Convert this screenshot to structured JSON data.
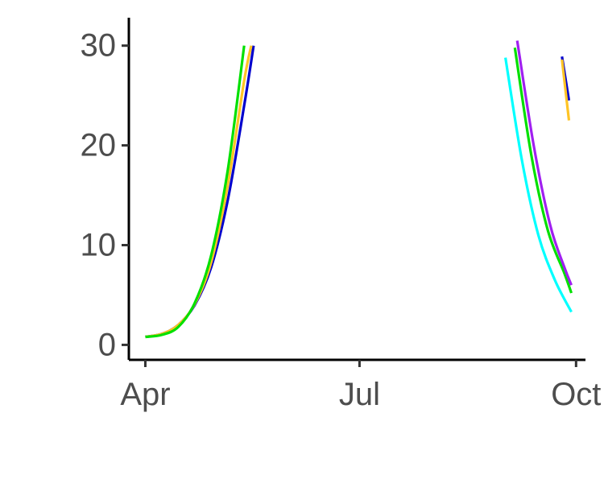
{
  "chart_data": {
    "type": "line",
    "title": "",
    "xlabel": "",
    "ylabel": "",
    "x_axis": {
      "type": "date",
      "range": [
        "2021-03-25",
        "2021-10-05"
      ],
      "ticks": [
        {
          "value": "2021-04-01",
          "label": "Apr"
        },
        {
          "value": "2021-07-01",
          "label": "Jul"
        },
        {
          "value": "2021-10-01",
          "label": "Oct"
        }
      ]
    },
    "y_axis": {
      "range": [
        -1.5,
        32.8
      ],
      "ticks": [
        {
          "value": 0,
          "label": "0"
        },
        {
          "value": 10,
          "label": "10"
        },
        {
          "value": 20,
          "label": "20"
        },
        {
          "value": 30,
          "label": "30"
        }
      ]
    },
    "grid": false,
    "legend": "none",
    "series": [
      {
        "color": "#0000cd",
        "points": [
          [
            "2021-04-01",
            0.8
          ],
          [
            "2021-04-08",
            1.1
          ],
          [
            "2021-04-15",
            2.0
          ],
          [
            "2021-04-22",
            4.0
          ],
          [
            "2021-04-29",
            7.8
          ],
          [
            "2021-05-06",
            14.5
          ],
          [
            "2021-05-13",
            24.0
          ],
          [
            "2021-05-17",
            30.0
          ]
        ]
      },
      {
        "color": "#ffc425",
        "points": [
          [
            "2021-04-01",
            0.8
          ],
          [
            "2021-04-08",
            1.1
          ],
          [
            "2021-04-15",
            2.0
          ],
          [
            "2021-04-22",
            4.1
          ],
          [
            "2021-04-29",
            8.3
          ],
          [
            "2021-05-06",
            16.0
          ],
          [
            "2021-05-13",
            26.5
          ],
          [
            "2021-05-16",
            30.0
          ]
        ]
      },
      {
        "color": "#00e000",
        "points": [
          [
            "2021-04-01",
            0.8
          ],
          [
            "2021-04-08",
            1.0
          ],
          [
            "2021-04-15",
            1.8
          ],
          [
            "2021-04-22",
            4.2
          ],
          [
            "2021-04-29",
            9.0
          ],
          [
            "2021-05-06",
            17.5
          ],
          [
            "2021-05-13",
            30.0
          ]
        ]
      },
      {
        "color": "#00ffff",
        "points": [
          [
            "2021-09-01",
            28.8
          ],
          [
            "2021-09-08",
            18.5
          ],
          [
            "2021-09-15",
            11.0
          ],
          [
            "2021-09-22",
            6.5
          ],
          [
            "2021-09-29",
            3.3
          ]
        ]
      },
      {
        "color": "#00e000",
        "points": [
          [
            "2021-09-05",
            29.8
          ],
          [
            "2021-09-12",
            19.0
          ],
          [
            "2021-09-19",
            11.5
          ],
          [
            "2021-09-26",
            7.2
          ],
          [
            "2021-09-29",
            5.2
          ]
        ]
      },
      {
        "color": "#a020f0",
        "points": [
          [
            "2021-09-06",
            30.5
          ],
          [
            "2021-09-13",
            20.0
          ],
          [
            "2021-09-20",
            12.0
          ],
          [
            "2021-09-26",
            7.8
          ],
          [
            "2021-09-29",
            6.0
          ]
        ]
      },
      {
        "color": "#0000cd",
        "points": [
          [
            "2021-09-25",
            28.9
          ],
          [
            "2021-09-28",
            24.5
          ]
        ]
      },
      {
        "color": "#ffc425",
        "points": [
          [
            "2021-09-25",
            28.6
          ],
          [
            "2021-09-28",
            22.5
          ]
        ]
      }
    ]
  }
}
